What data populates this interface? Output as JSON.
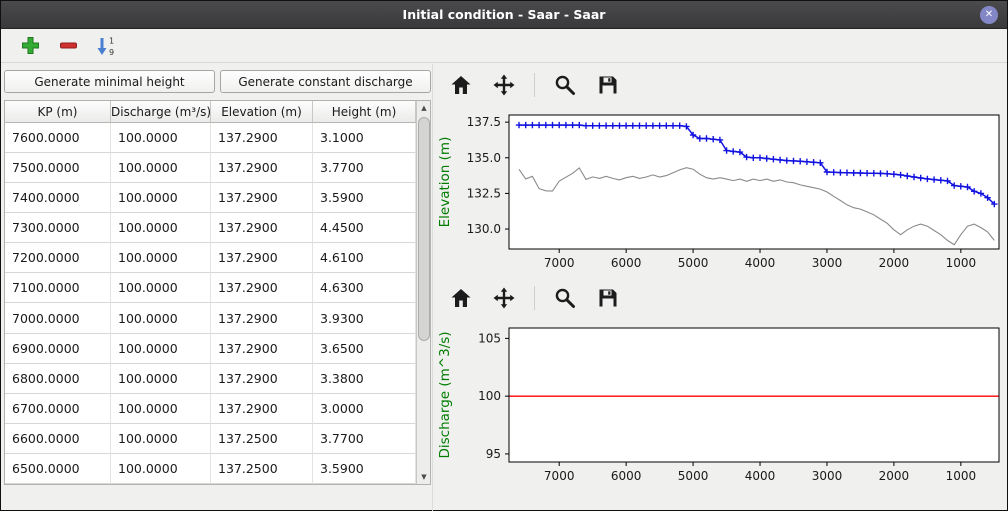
{
  "window": {
    "title": "Initial condition - Saar - Saar",
    "close_icon": "✕"
  },
  "toolbar": {
    "icons": [
      {
        "name": "add-row-icon",
        "glyph": "green-plus",
        "color": "#2fa82f"
      },
      {
        "name": "delete-row-icon",
        "glyph": "red-minus",
        "color": "#cc2e2e"
      },
      {
        "name": "sort-numeric-icon",
        "glyph": "arrow-down-1-9",
        "color": "#4a7fd2",
        "top_digit": "1",
        "bottom_digit": "9"
      }
    ]
  },
  "actions": {
    "generate_minimal_height": "Generate minimal height",
    "generate_constant_discharge": "Generate constant discharge"
  },
  "table": {
    "columns": [
      "KP (m)",
      "Discharge (m³/s)",
      "Elevation (m)",
      "Height (m)"
    ],
    "rows": [
      [
        "7600.0000",
        "100.0000",
        "137.2900",
        "3.1000"
      ],
      [
        "7500.0000",
        "100.0000",
        "137.2900",
        "3.7700"
      ],
      [
        "7400.0000",
        "100.0000",
        "137.2900",
        "3.5900"
      ],
      [
        "7300.0000",
        "100.0000",
        "137.2900",
        "4.4500"
      ],
      [
        "7200.0000",
        "100.0000",
        "137.2900",
        "4.6100"
      ],
      [
        "7100.0000",
        "100.0000",
        "137.2900",
        "4.6300"
      ],
      [
        "7000.0000",
        "100.0000",
        "137.2900",
        "3.9300"
      ],
      [
        "6900.0000",
        "100.0000",
        "137.2900",
        "3.6500"
      ],
      [
        "6800.0000",
        "100.0000",
        "137.2900",
        "3.3800"
      ],
      [
        "6700.0000",
        "100.0000",
        "137.2900",
        "3.0000"
      ],
      [
        "6600.0000",
        "100.0000",
        "137.2500",
        "3.7700"
      ],
      [
        "6500.0000",
        "100.0000",
        "137.2500",
        "3.5900"
      ]
    ]
  },
  "scrollbar": {
    "up": "▲",
    "down": "▼"
  },
  "plot_toolbar": {
    "icons": [
      {
        "name": "home-icon"
      },
      {
        "name": "pan-icon"
      },
      {
        "name": "zoom-icon"
      },
      {
        "name": "save-icon"
      }
    ]
  },
  "chart_data": [
    {
      "type": "line",
      "title": "",
      "xlabel": "",
      "ylabel": "Elevation (m)",
      "ylabel_color": "#007d00",
      "xlim": [
        7750,
        430
      ],
      "ylim": [
        128.6,
        138.0
      ],
      "x_reversed": true,
      "grid": false,
      "xticks": [
        7000,
        6000,
        5000,
        4000,
        3000,
        2000,
        1000
      ],
      "yticks": [
        130.0,
        132.5,
        135.0,
        137.5
      ],
      "ytick_labels": [
        "130.0",
        "132.5",
        "135.0",
        "137.5"
      ],
      "series": [
        {
          "name": "water-surface-elevation",
          "color": "#1212e0",
          "marker": "plus",
          "line_width": 1.5,
          "x_start": 7600,
          "x_step": -100,
          "values": [
            137.29,
            137.29,
            137.29,
            137.29,
            137.29,
            137.29,
            137.29,
            137.29,
            137.29,
            137.29,
            137.25,
            137.25,
            137.25,
            137.25,
            137.25,
            137.25,
            137.25,
            137.25,
            137.25,
            137.25,
            137.25,
            137.25,
            137.25,
            137.25,
            137.25,
            137.2,
            136.6,
            136.35,
            136.35,
            136.3,
            136.25,
            135.5,
            135.45,
            135.4,
            135.05,
            135.0,
            135.0,
            134.95,
            134.9,
            134.85,
            134.8,
            134.78,
            134.75,
            134.72,
            134.68,
            134.65,
            134.0,
            133.98,
            133.96,
            133.95,
            133.94,
            133.93,
            133.92,
            133.91,
            133.9,
            133.88,
            133.85,
            133.8,
            133.72,
            133.65,
            133.58,
            133.52,
            133.47,
            133.42,
            133.38,
            133.05,
            133.0,
            132.95,
            132.65,
            132.5,
            132.2,
            131.75
          ]
        },
        {
          "name": "bottom-elevation",
          "color": "#8a8a8a",
          "marker": "none",
          "line_width": 1.1,
          "x_start": 7600,
          "x_step": -100,
          "values": [
            134.19,
            133.52,
            133.7,
            132.84,
            132.68,
            132.66,
            133.36,
            133.64,
            133.91,
            134.29,
            133.48,
            133.66,
            133.55,
            133.7,
            133.55,
            133.45,
            133.6,
            133.7,
            133.55,
            133.65,
            133.8,
            133.65,
            133.75,
            133.95,
            134.15,
            134.3,
            134.2,
            133.85,
            133.6,
            133.5,
            133.6,
            133.5,
            133.4,
            133.5,
            133.35,
            133.5,
            133.4,
            133.5,
            133.35,
            133.45,
            133.3,
            133.25,
            133.1,
            133.0,
            132.9,
            132.8,
            132.6,
            132.3,
            132.0,
            131.7,
            131.5,
            131.4,
            131.2,
            131.0,
            130.7,
            130.4,
            129.95,
            129.6,
            129.95,
            130.2,
            130.35,
            130.2,
            129.9,
            129.6,
            129.2,
            128.9,
            129.6,
            130.2,
            130.35,
            130.1,
            129.8,
            129.2
          ]
        }
      ]
    },
    {
      "type": "line",
      "title": "",
      "xlabel": "",
      "ylabel": "Discharge (m^3/s)",
      "ylabel_color": "#007d00",
      "xlim": [
        7750,
        430
      ],
      "ylim": [
        94.3,
        105.9
      ],
      "x_reversed": true,
      "grid": false,
      "xticks": [
        7000,
        6000,
        5000,
        4000,
        3000,
        2000,
        1000
      ],
      "yticks": [
        95,
        100,
        105
      ],
      "ytick_labels": [
        "95",
        "100",
        "105"
      ],
      "series": [
        {
          "name": "constant-discharge",
          "color": "#ff0000",
          "marker": "none",
          "line_width": 1.3,
          "x": [
            7750,
            430
          ],
          "values": [
            100,
            100
          ]
        }
      ]
    }
  ]
}
